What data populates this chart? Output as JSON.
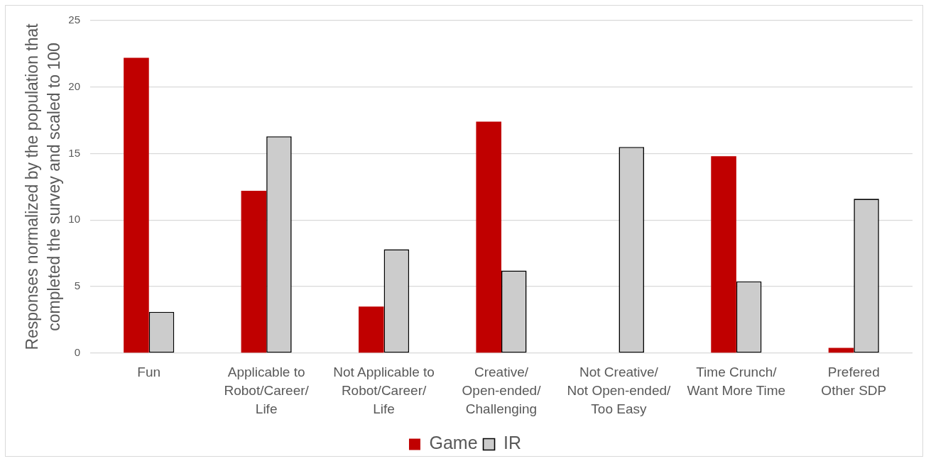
{
  "chart_data": {
    "type": "bar",
    "ylabel": "Responses normalized by the population that\ncompleted the survey and scaled to 100",
    "categories": [
      "Fun",
      "Applicable to\nRobot/Career/\nLife",
      "Not Applicable to\nRobot/Career/\nLife",
      "Creative/\nOpen-ended/\nChallenging",
      "Not Creative/\nNot Open-ended/\nToo Easy",
      "Time Crunch/\nWant More Time",
      "Prefered\nOther SDP"
    ],
    "series": [
      {
        "name": "Game",
        "color": "#c00000",
        "values": [
          22.2,
          12.2,
          3.5,
          17.4,
          0,
          14.8,
          0.4
        ]
      },
      {
        "name": "IR",
        "color": "#cccccc",
        "values": [
          3.1,
          16.3,
          7.8,
          6.2,
          15.5,
          5.4,
          11.6
        ]
      }
    ],
    "ylim": [
      0,
      25
    ],
    "yticks": [
      0,
      5,
      10,
      15,
      20,
      25
    ],
    "grid": "y",
    "legend": "bottom"
  }
}
